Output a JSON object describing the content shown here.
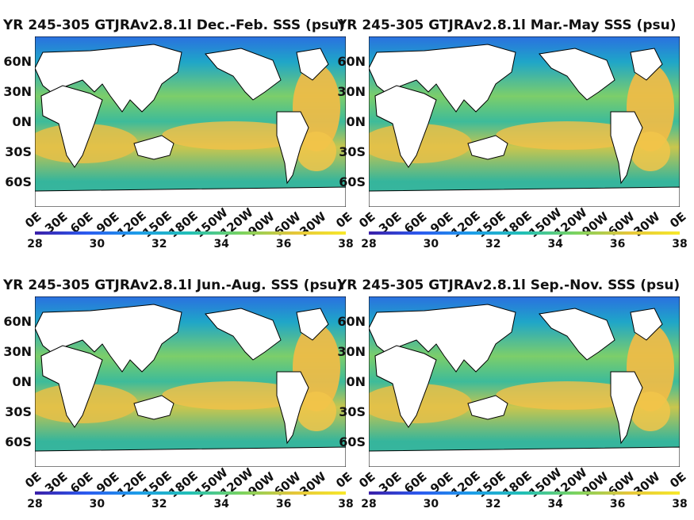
{
  "panels": [
    {
      "title": "YR 245-305 GTJRAv2.8.1l Dec.-Feb. SSS (psu)"
    },
    {
      "title": "YR 245-305 GTJRAv2.8.1l Mar.-May SSS (psu)"
    },
    {
      "title": "YR 245-305 GTJRAv2.8.1l Jun.-Aug. SSS (psu)"
    },
    {
      "title": "YR 245-305 GTJRAv2.8.1l Sep.-Nov. SSS (psu)"
    }
  ],
  "lat_ticks": [
    "60N",
    "30N",
    "0N",
    "30S",
    "60S"
  ],
  "lon_ticks": [
    "0E",
    "30E",
    "60E",
    "90E",
    "120E",
    "150E",
    "180E",
    "150W",
    "120W",
    "90W",
    "60W",
    "30W",
    "0E"
  ],
  "colorbar": {
    "ticks": [
      "28",
      "30",
      "32",
      "34",
      "36",
      "38"
    ],
    "range": [
      28,
      38
    ],
    "colors": [
      "#3b1fa8",
      "#2c5cf0",
      "#1d9ee8",
      "#22c0b4",
      "#7cd35f",
      "#e5c63a",
      "#f7e82b"
    ]
  },
  "colors": {
    "land": "#ffffff",
    "coast": "#000000",
    "ocean_mid": "#37b89a",
    "ocean_salty": "#f0c245",
    "ocean_fresh": "#2a86e0"
  }
}
